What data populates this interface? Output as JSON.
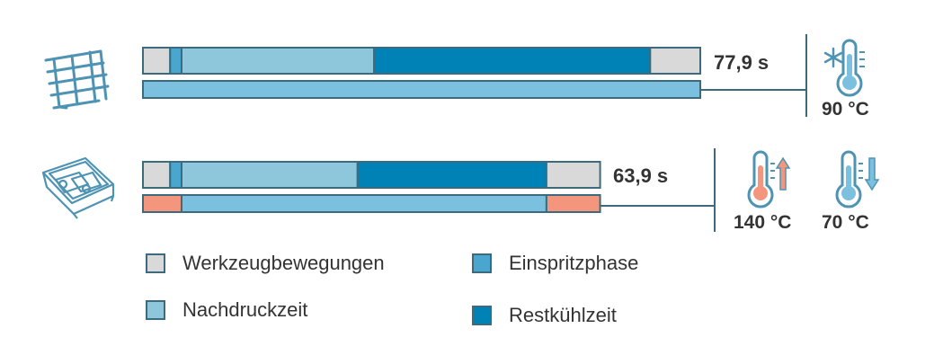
{
  "colors": {
    "Werkzeugbewegungen": "#d9d9d9",
    "Einspritzphase": "#4aa6cf",
    "Nachdruckzeit": "#8ec6dc",
    "Restkühlzeit": "#0082b6",
    "cycle_bar": "#7bc1df",
    "heating": "#f4967e",
    "outline": "#3d6b7d",
    "icon": "#4e93b3"
  },
  "chart_data": {
    "type": "bar",
    "orientation": "horizontal",
    "stacked": true,
    "unit": "s",
    "series_names": [
      "Werkzeugbewegungen",
      "Einspritzphase",
      "Nachdruckzeit",
      "Restkühlzeit"
    ],
    "rows": [
      {
        "total_label": "77,9 s",
        "total": 77.9,
        "segments": [
          {
            "name": "Werkzeugbewegungen",
            "value": 3.8
          },
          {
            "name": "Einspritzphase",
            "value": 1.6
          },
          {
            "name": "Nachdruckzeit",
            "value": 26.9
          },
          {
            "name": "Restkühlzeit",
            "value": 38.6
          },
          {
            "name": "Werkzeugbewegungen",
            "value": 7.0
          }
        ],
        "temperature_segments": [
          {
            "type": "cycle",
            "value": 77.9
          }
        ],
        "temperatures": [
          {
            "label": "90 °C",
            "icon": "thermometer-snowflake-icon"
          }
        ],
        "part_icon": "grid-part-icon"
      },
      {
        "total_label": "63,9 s",
        "total": 63.9,
        "segments": [
          {
            "name": "Werkzeugbewegungen",
            "value": 3.8
          },
          {
            "name": "Einspritzphase",
            "value": 1.6
          },
          {
            "name": "Nachdruckzeit",
            "value": 24.6
          },
          {
            "name": "Restkühlzeit",
            "value": 26.4
          },
          {
            "name": "Werkzeugbewegungen",
            "value": 7.5
          }
        ],
        "temperature_segments": [
          {
            "type": "heating",
            "value": 5.4
          },
          {
            "type": "cycle",
            "value": 51.0
          },
          {
            "type": "heating",
            "value": 7.5
          }
        ],
        "temperatures": [
          {
            "label": "140 °C",
            "icon": "thermometer-up-icon"
          },
          {
            "label": "70 °C",
            "icon": "thermometer-down-icon"
          }
        ],
        "part_icon": "tray-part-icon"
      }
    ],
    "legend": [
      {
        "name": "Werkzeugbewegungen"
      },
      {
        "name": "Einspritzphase"
      },
      {
        "name": "Nachdruckzeit"
      },
      {
        "name": "Restkühlzeit"
      }
    ]
  }
}
